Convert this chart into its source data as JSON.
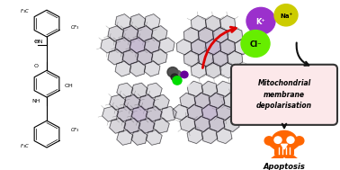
{
  "bg_color": "#ffffff",
  "box_text": "Mitochondrial\nmembrane\ndepolarisation",
  "box_bg": "#fce8ea",
  "box_edge": "#333333",
  "apoptosis_text": "Apoptosis",
  "K_color": "#9b30cc",
  "Na_color": "#cccc00",
  "Cl_color": "#66ee00",
  "K_label": "K⁺",
  "Na_label": "Na⁺",
  "Cl_label": "Cl⁻",
  "arrow_red_color": "#dd0000",
  "arrow_black_color": "#111111",
  "skull_color": "#ff6600",
  "crystal_color_dark": "#222222",
  "crystal_color_mid": "#555577",
  "crystal_color_light": "#aaaacc",
  "green_dot": "#00dd00",
  "purple_dot": "#660099"
}
